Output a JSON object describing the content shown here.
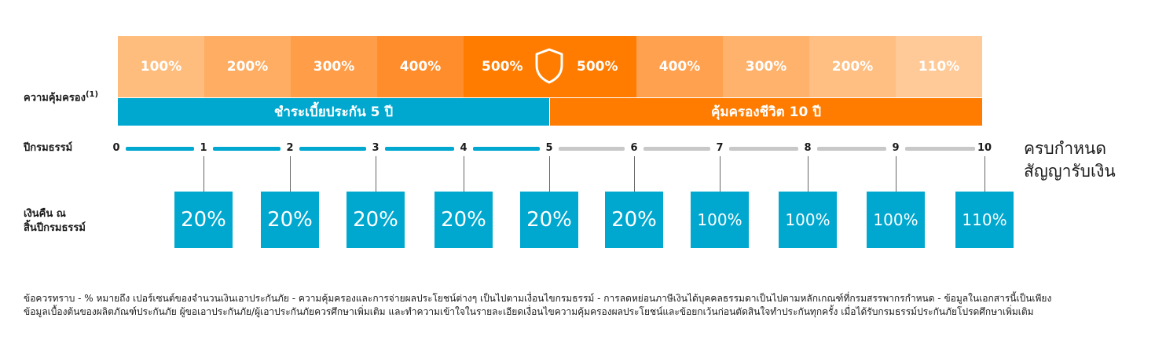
{
  "labels": {
    "coverage": "ความคุ้มครอง",
    "coverage_sup": "(1)",
    "policy_year": "ปีกรมธรรม์",
    "refund_line1": "เงินคืน ณ",
    "refund_line2": "สิ้นปีกรมธรรม์",
    "maturity_line1": "ครบกำหนด",
    "maturity_line2": "สัญญารับเงิน"
  },
  "coverage_cells": [
    "100%",
    "200%",
    "300%",
    "400%",
    "500%",
    "500%",
    "400%",
    "300%",
    "200%",
    "110%"
  ],
  "coverage_colors": [
    "#ffbd7d",
    "#ffad63",
    "#ff9d48",
    "#ff8d2c",
    "#ff7c00",
    "#ff7c00",
    "#ffa14f",
    "#ffb26c",
    "#ffbe82",
    "#ffca98"
  ],
  "bands": {
    "premium": "ชำระเบี้ยประกัน 5 ปี",
    "protection": "คุ้มครองชีวิต 10 ปี"
  },
  "colors": {
    "blue": "#00a8cf",
    "orange": "#ff7c00",
    "grey": "#c8c8c8"
  },
  "years": [
    "0",
    "1",
    "2",
    "3",
    "4",
    "5",
    "6",
    "7",
    "8",
    "9",
    "10"
  ],
  "refunds": [
    "20%",
    "20%",
    "20%",
    "20%",
    "20%",
    "20%",
    "100%",
    "100%",
    "100%",
    "110%"
  ],
  "icon": "shield-icon",
  "note": {
    "line1": "ข้อควรทราบ   - % หมายถึง เปอร์เซนต์ของจำนวนเงินเอาประกันภัย - ความคุ้มครองและการจ่ายผลประโยชน์ต่างๆ เป็นไปตามเงื่อนไขกรมธรรม์ - การลดหย่อนภาษีเงินได้บุคคลธรรมดาเป็นไปตามหลักเกณฑ์ที่กรมสรรพากรกำหนด - ข้อมูลในเอกสารนี้เป็นเพียง",
    "line2": "ข้อมูลเบื้องต้นของผลิตภัณฑ์ประกันภัย ผู้ขอเอาประกันภัย/ผู้เอาประกันภัยควรศึกษาเพิ่มเติม และทำความเข้าใจในรายละเอียดเงื่อนไขความคุ้มครองผลประโยชน์และข้อยกเว้นก่อนตัดสินใจทำประกันทุกครั้ง เมื่อได้รับกรมธรรม์ประกันภัยโปรดศึกษาเพิ่มเติม"
  }
}
